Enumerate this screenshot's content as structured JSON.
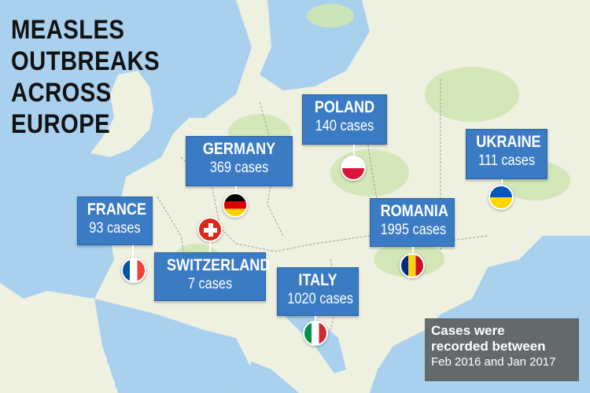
{
  "title_lines": [
    "MEASLES",
    "OUTBREAKS",
    "ACROSS",
    "EUROPE"
  ],
  "countries": [
    {
      "name": "GERMANY",
      "cases": "369 cases",
      "flag": "germany"
    },
    {
      "name": "POLAND",
      "cases": "140 cases",
      "flag": "poland"
    },
    {
      "name": "UKRAINE",
      "cases": "111 cases",
      "flag": "ukraine"
    },
    {
      "name": "FRANCE",
      "cases": "93 cases",
      "flag": "france"
    },
    {
      "name": "ROMANIA",
      "cases": "1995 cases",
      "flag": "romania"
    },
    {
      "name": "SWITZERLAND",
      "cases": "7 cases",
      "flag": "switzerland"
    },
    {
      "name": "ITALY",
      "cases": "1020 cases",
      "flag": "italy"
    }
  ],
  "note": {
    "line1": "Cases were",
    "line2": "recorded between",
    "line3": "Feb 2016 and Jan 2017"
  },
  "colors": {
    "callout": "#3a7bc4",
    "sea": "#a9d1ee",
    "land": "#eef0e0",
    "forest": "#cfe5b4",
    "border": "#9aa0a8",
    "note_bg": "#5a5a5a"
  }
}
